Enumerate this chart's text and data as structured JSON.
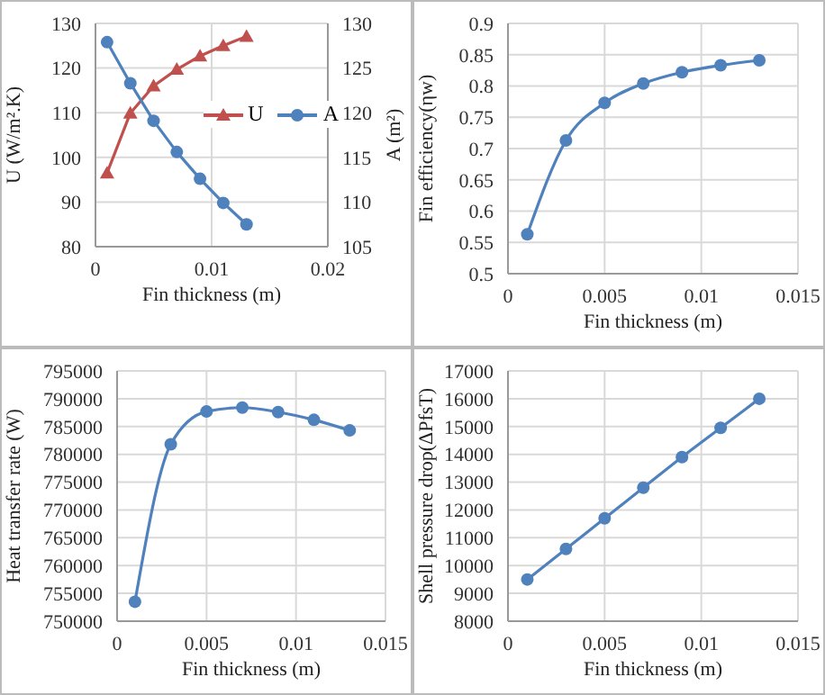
{
  "chart_data": [
    {
      "type": "line",
      "xlabel": "Fin thickness (m)",
      "ylabel": "U (W/m².K)",
      "y2label": "A (m²)",
      "x": [
        0.001,
        0.003,
        0.005,
        0.007,
        0.009,
        0.011,
        0.013
      ],
      "xlim": [
        0,
        0.02
      ],
      "xticks": [
        0,
        0.01,
        0.02
      ],
      "ylim": [
        80,
        130
      ],
      "yticks": [
        80,
        90,
        100,
        110,
        120,
        130
      ],
      "y2lim": [
        105,
        130
      ],
      "y2ticks": [
        105,
        110,
        115,
        120,
        125,
        130
      ],
      "grid": true,
      "legend": "right",
      "series": [
        {
          "name": "U",
          "color": "#c0504d",
          "marker": "triangle",
          "values": [
            96.5,
            109.9,
            116,
            119.7,
            122.7,
            125,
            127.1
          ]
        },
        {
          "name": "A",
          "color": "#4f81bd",
          "marker": "circle",
          "axis": "y2",
          "values": [
            127.9,
            123.3,
            119.1,
            115.6,
            112.6,
            109.9,
            107.5
          ]
        }
      ]
    },
    {
      "type": "line",
      "xlabel": "Fin thickness (m)",
      "ylabel": "Fin efficiency(ηw)",
      "x": [
        0.001,
        0.003,
        0.005,
        0.007,
        0.009,
        0.011,
        0.013
      ],
      "xlim": [
        0,
        0.015
      ],
      "xticks": [
        0,
        0.005,
        0.01,
        0.015
      ],
      "ylim": [
        0.5,
        0.9
      ],
      "yticks": [
        0.5,
        0.55,
        0.6,
        0.65,
        0.7,
        0.75,
        0.8,
        0.85,
        0.9
      ],
      "grid": true,
      "marker": "circle",
      "series": [
        {
          "color": "#4f81bd",
          "values": [
            0.563,
            0.713,
            0.773,
            0.804,
            0.822,
            0.833,
            0.841
          ]
        }
      ]
    },
    {
      "type": "line",
      "xlabel": "Fin thickness (m)",
      "ylabel": "Heat transfer rate (W)",
      "x": [
        0.001,
        0.003,
        0.005,
        0.007,
        0.009,
        0.011,
        0.013
      ],
      "xlim": [
        0,
        0.015
      ],
      "xticks": [
        0,
        0.005,
        0.01,
        0.015
      ],
      "ylim": [
        750000,
        795000
      ],
      "yticks": [
        750000,
        755000,
        760000,
        765000,
        770000,
        775000,
        780000,
        785000,
        790000,
        795000
      ],
      "grid": true,
      "marker": "circle",
      "series": [
        {
          "color": "#4f81bd",
          "values": [
            753500,
            781800,
            787700,
            788400,
            787600,
            786200,
            784300
          ]
        }
      ]
    },
    {
      "type": "line",
      "xlabel": "Fin thickness (m)",
      "ylabel": "Shell pressure drop(ΔPfsT)",
      "x": [
        0.001,
        0.003,
        0.005,
        0.007,
        0.009,
        0.011,
        0.013
      ],
      "xlim": [
        0,
        0.015
      ],
      "xticks": [
        0,
        0.005,
        0.01,
        0.015
      ],
      "ylim": [
        8000,
        17000
      ],
      "yticks": [
        8000,
        9000,
        10000,
        11000,
        12000,
        13000,
        14000,
        15000,
        16000,
        17000
      ],
      "grid": true,
      "marker": "circle",
      "series": [
        {
          "color": "#4f81bd",
          "values": [
            9500,
            10600,
            11700,
            12800,
            13900,
            14950,
            16000
          ]
        }
      ]
    }
  ]
}
